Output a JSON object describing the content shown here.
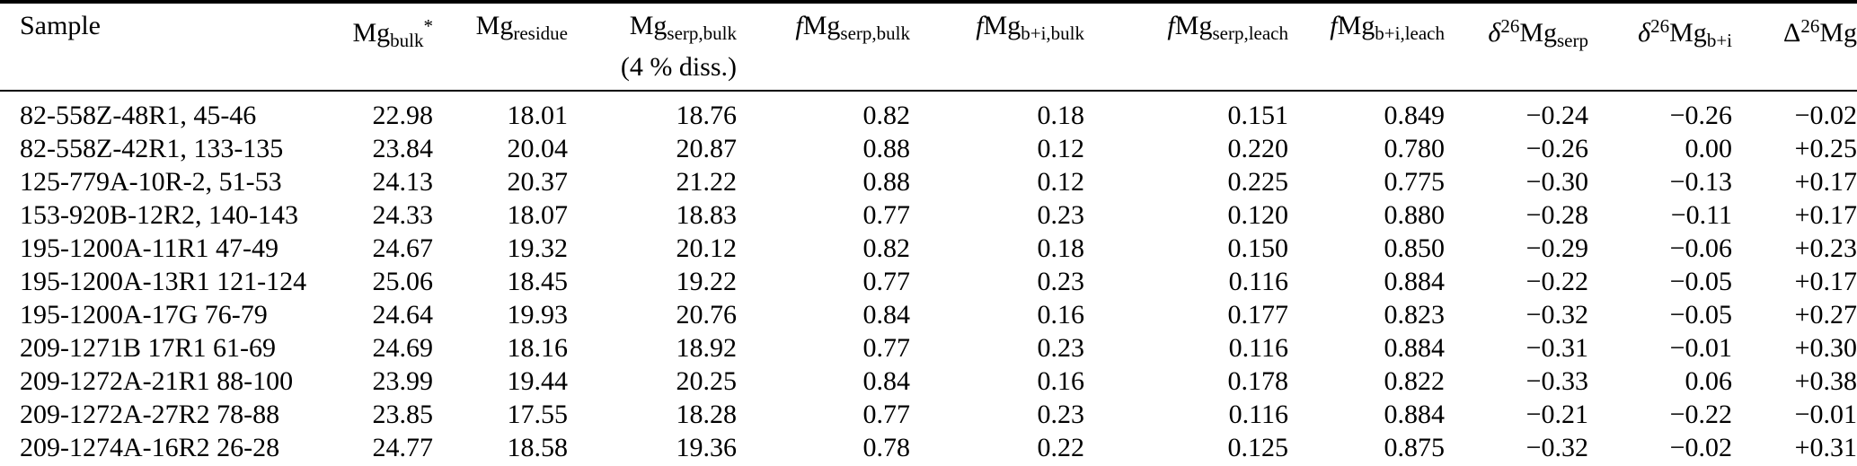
{
  "colors": {
    "text": "#000000",
    "background": "#ffffff",
    "rule": "#000000"
  },
  "table": {
    "columns": [
      {
        "id": "sample",
        "align": "left",
        "label_parts": [
          {
            "t": "Sample"
          }
        ]
      },
      {
        "id": "mg-bulk",
        "align": "right",
        "label_parts": [
          {
            "t": "Mg"
          },
          {
            "sub": "bulk"
          },
          {
            "sup": "*"
          }
        ]
      },
      {
        "id": "mg-residue",
        "align": "right",
        "label_parts": [
          {
            "t": "Mg"
          },
          {
            "sub": "residue"
          }
        ]
      },
      {
        "id": "mg-serp-bulk",
        "align": "right",
        "label_parts": [
          {
            "t": "Mg"
          },
          {
            "sub": "serp,bulk"
          },
          {
            "br": true
          },
          {
            "t": "(4 % diss.)"
          }
        ]
      },
      {
        "id": "f-mg-serp-bulk",
        "align": "right",
        "label_parts": [
          {
            "i": "f"
          },
          {
            "t": "Mg"
          },
          {
            "sub": "serp,bulk"
          }
        ]
      },
      {
        "id": "f-mg-bi-bulk",
        "align": "right",
        "label_parts": [
          {
            "i": "f"
          },
          {
            "t": "Mg"
          },
          {
            "sub": "b+i,bulk"
          }
        ]
      },
      {
        "id": "f-mg-serp-leach",
        "align": "right",
        "label_parts": [
          {
            "i": "f"
          },
          {
            "t": "Mg"
          },
          {
            "sub": "serp,leach"
          }
        ]
      },
      {
        "id": "f-mg-bi-leach",
        "align": "right",
        "label_parts": [
          {
            "i": "f"
          },
          {
            "t": "Mg"
          },
          {
            "sub": "b+i,leach"
          }
        ]
      },
      {
        "id": "d26mg-serp",
        "align": "right",
        "label_parts": [
          {
            "i": "δ"
          },
          {
            "sup": "26"
          },
          {
            "t": "Mg"
          },
          {
            "sub": "serp"
          }
        ]
      },
      {
        "id": "d26mg-bi",
        "align": "right",
        "label_parts": [
          {
            "i": "δ"
          },
          {
            "sup": "26"
          },
          {
            "t": "Mg"
          },
          {
            "sub": "b+i"
          }
        ]
      },
      {
        "id": "delta26mg",
        "align": "right",
        "label_parts": [
          {
            "t": "Δ"
          },
          {
            "sup": "26"
          },
          {
            "t": "Mg"
          }
        ]
      }
    ],
    "rows": [
      [
        "82-558Z-48R1, 45-46",
        "22.98",
        "18.01",
        "18.76",
        "0.82",
        "0.18",
        "0.151",
        "0.849",
        "−0.24",
        "−0.26",
        "−0.02"
      ],
      [
        "82-558Z-42R1, 133-135",
        "23.84",
        "20.04",
        "20.87",
        "0.88",
        "0.12",
        "0.220",
        "0.780",
        "−0.26",
        "0.00",
        "+0.25"
      ],
      [
        "125-779A-10R-2, 51-53",
        "24.13",
        "20.37",
        "21.22",
        "0.88",
        "0.12",
        "0.225",
        "0.775",
        "−0.30",
        "−0.13",
        "+0.17"
      ],
      [
        "153-920B-12R2, 140-143",
        "24.33",
        "18.07",
        "18.83",
        "0.77",
        "0.23",
        "0.120",
        "0.880",
        "−0.28",
        "−0.11",
        "+0.17"
      ],
      [
        "195-1200A-11R1 47-49",
        "24.67",
        "19.32",
        "20.12",
        "0.82",
        "0.18",
        "0.150",
        "0.850",
        "−0.29",
        "−0.06",
        "+0.23"
      ],
      [
        "195-1200A-13R1 121-124",
        "25.06",
        "18.45",
        "19.22",
        "0.77",
        "0.23",
        "0.116",
        "0.884",
        "−0.22",
        "−0.05",
        "+0.17"
      ],
      [
        "195-1200A-17G 76-79",
        "24.64",
        "19.93",
        "20.76",
        "0.84",
        "0.16",
        "0.177",
        "0.823",
        "−0.32",
        "−0.05",
        "+0.27"
      ],
      [
        "209-1271B 17R1 61-69",
        "24.69",
        "18.16",
        "18.92",
        "0.77",
        "0.23",
        "0.116",
        "0.884",
        "−0.31",
        "−0.01",
        "+0.30"
      ],
      [
        "209-1272A-21R1 88-100",
        "23.99",
        "19.44",
        "20.25",
        "0.84",
        "0.16",
        "0.178",
        "0.822",
        "−0.33",
        "0.06",
        "+0.38"
      ],
      [
        "209-1272A-27R2 78-88",
        "23.85",
        "17.55",
        "18.28",
        "0.77",
        "0.23",
        "0.116",
        "0.884",
        "−0.21",
        "−0.22",
        "−0.01"
      ],
      [
        "209-1274A-16R2 26-28",
        "24.77",
        "18.58",
        "19.36",
        "0.78",
        "0.22",
        "0.125",
        "0.875",
        "−0.32",
        "−0.02",
        "+0.31"
      ]
    ]
  }
}
